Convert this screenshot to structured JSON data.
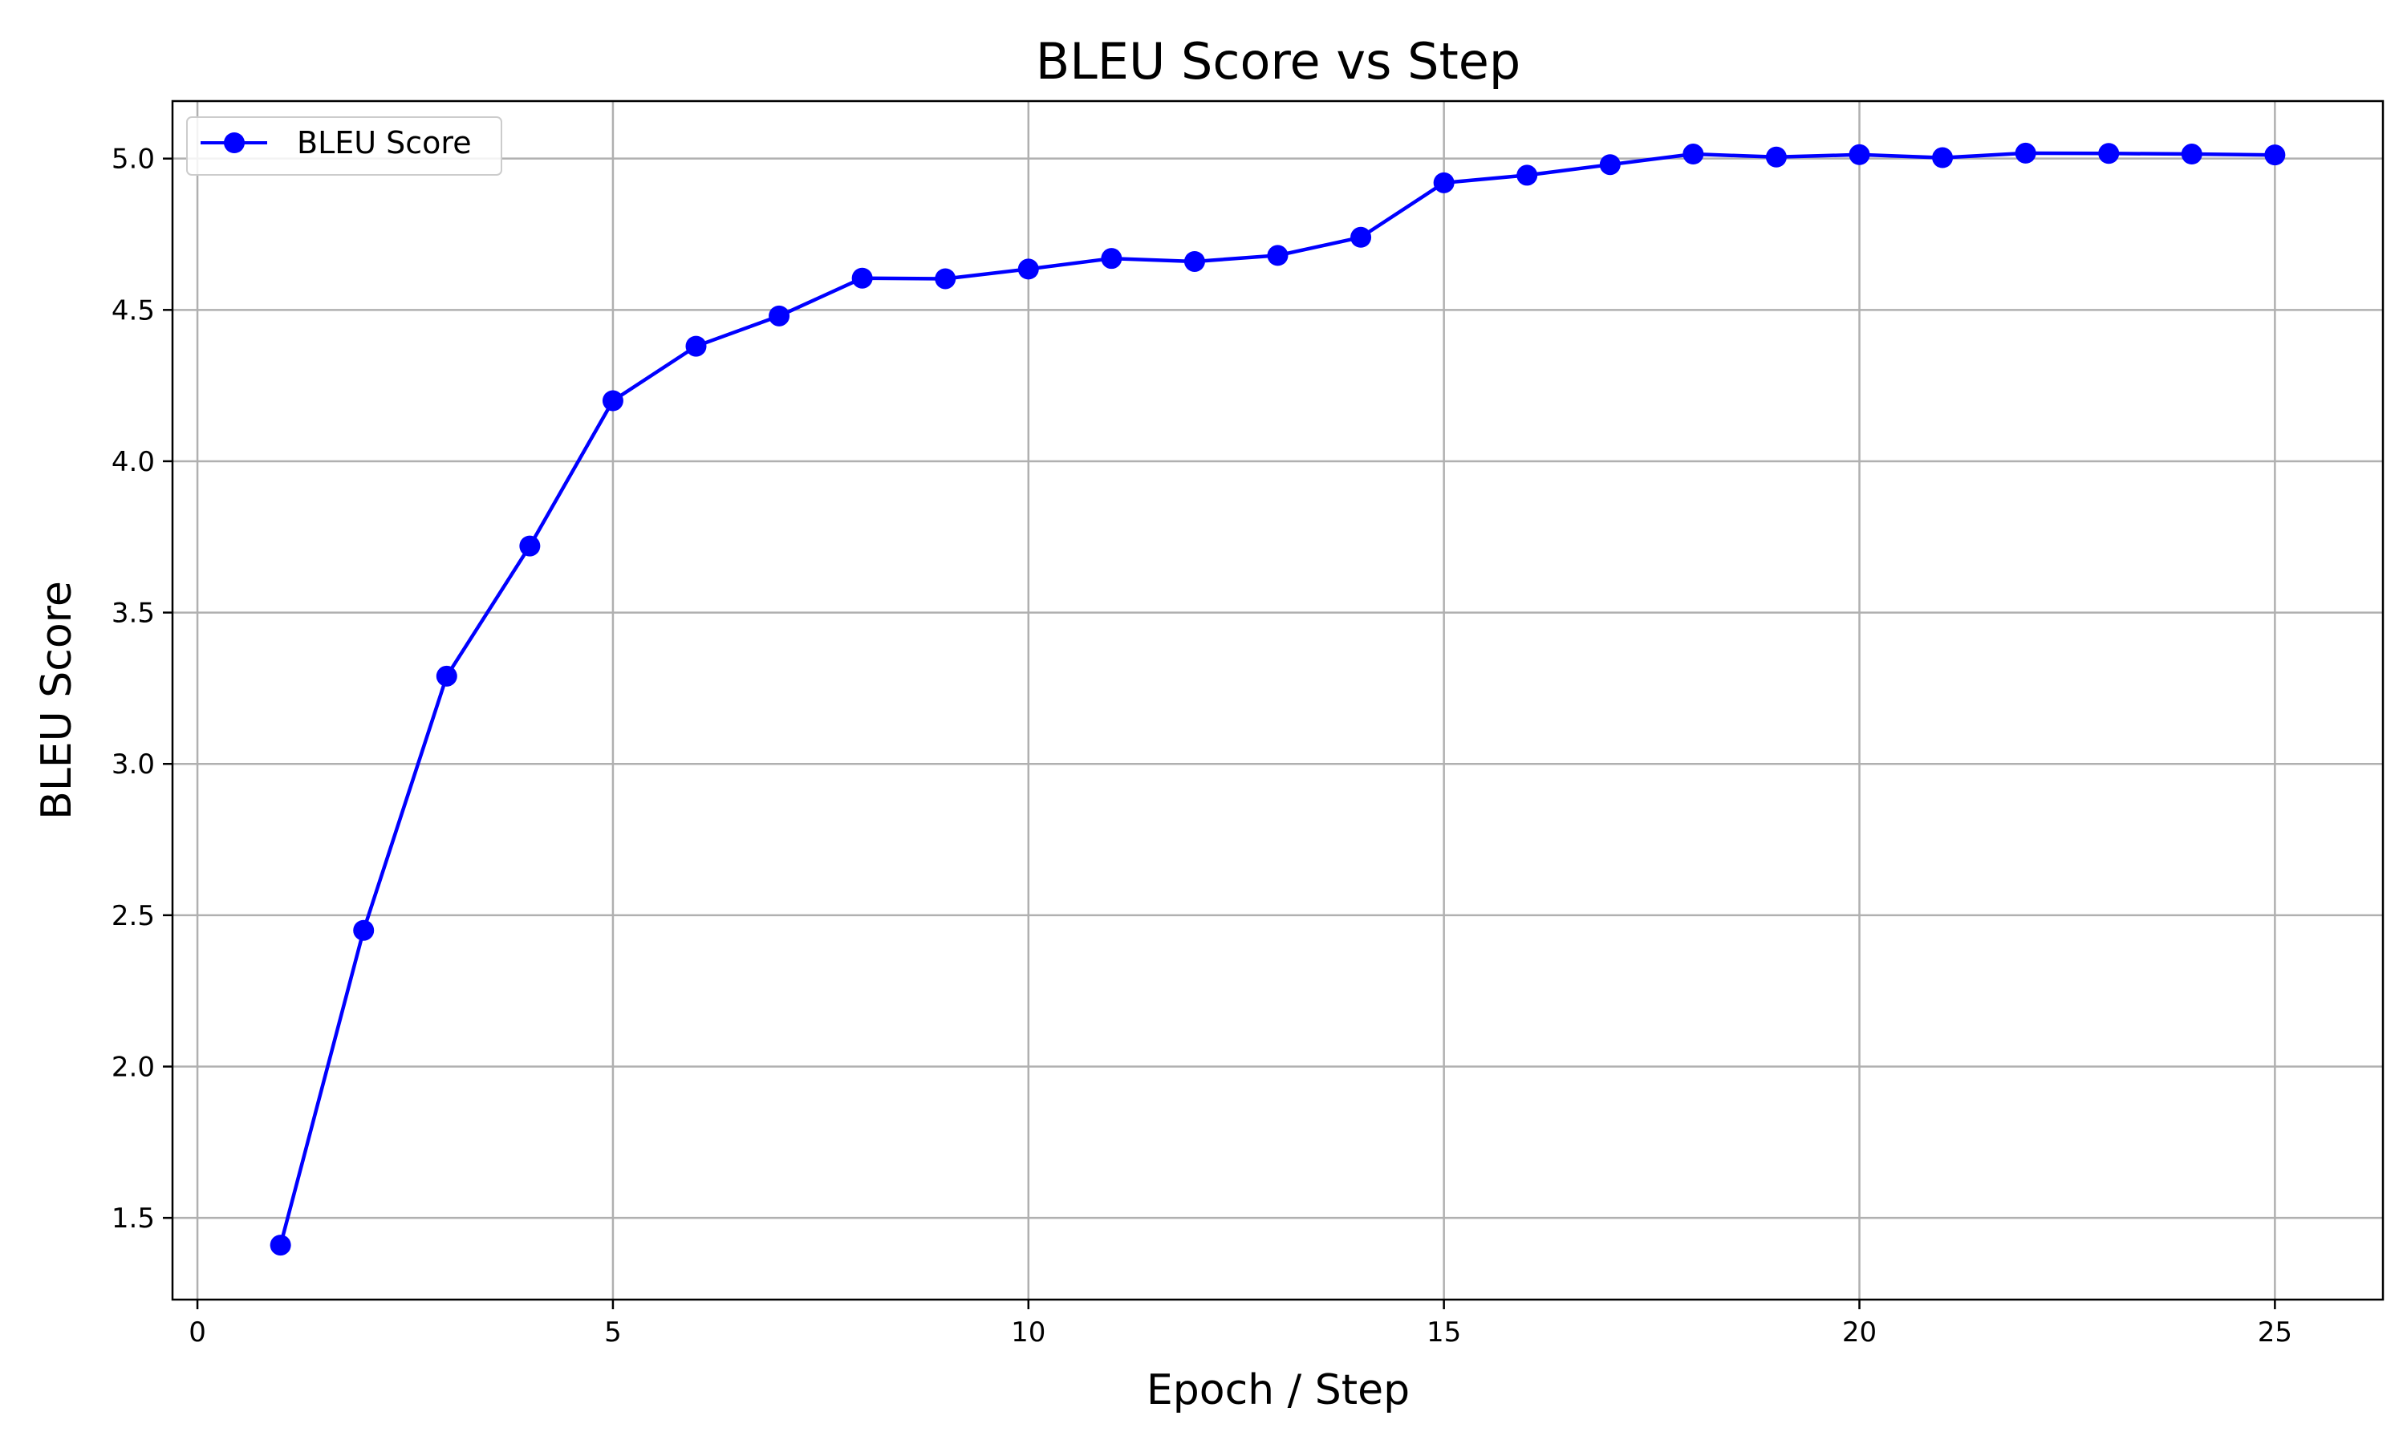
{
  "chart_data": {
    "type": "line",
    "title": "BLEU Score vs Step",
    "xlabel": "Epoch / Step",
    "ylabel": "BLEU Score",
    "xlim": [
      -0.3,
      26.3
    ],
    "ylim": [
      1.23,
      5.19
    ],
    "xticks": [
      0,
      5,
      10,
      15,
      20,
      25
    ],
    "yticks": [
      1.5,
      2.0,
      2.5,
      3.0,
      3.5,
      4.0,
      4.5,
      5.0
    ],
    "xtick_labels": [
      "0",
      "5",
      "10",
      "15",
      "20",
      "25"
    ],
    "ytick_labels": [
      "1.5",
      "2.0",
      "2.5",
      "3.0",
      "3.5",
      "4.0",
      "4.5",
      "5.0"
    ],
    "grid": true,
    "legend_position": "top-left",
    "series": [
      {
        "name": "BLEU Score",
        "color": "#0000ff",
        "marker": "circle",
        "x": [
          1,
          2,
          3,
          4,
          5,
          6,
          7,
          8,
          9,
          10,
          11,
          12,
          13,
          14,
          15,
          16,
          17,
          18,
          19,
          20,
          21,
          22,
          23,
          24,
          25
        ],
        "y": [
          1.41,
          2.45,
          3.29,
          3.72,
          4.2,
          4.38,
          4.48,
          4.605,
          4.603,
          4.635,
          4.67,
          4.66,
          4.68,
          4.74,
          4.92,
          4.945,
          4.98,
          5.015,
          5.005,
          5.013,
          5.003,
          5.018,
          5.017,
          5.015,
          5.012
        ]
      }
    ]
  }
}
